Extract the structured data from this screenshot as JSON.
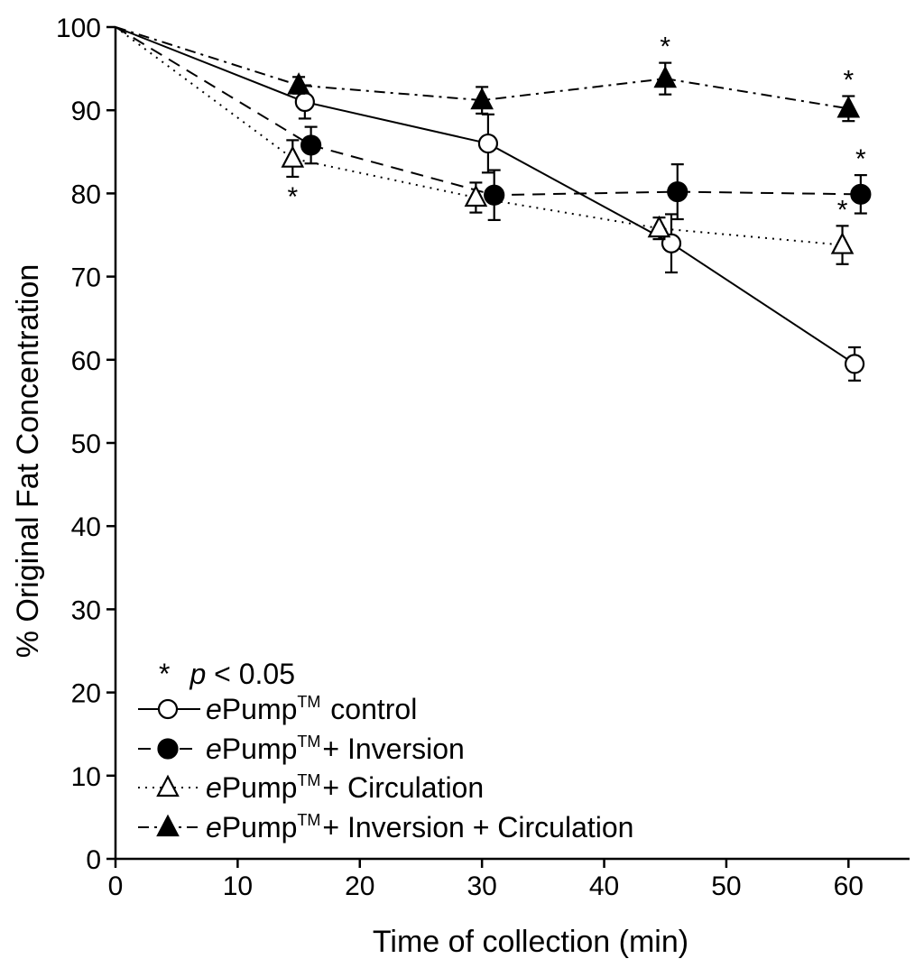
{
  "chart_data": {
    "type": "line",
    "title": "",
    "xlabel": "Time of collection (min)",
    "ylabel": "% Original Fat Concentration",
    "xlim": [
      0,
      65
    ],
    "ylim": [
      0,
      100
    ],
    "x_ticks": [
      "0",
      "10",
      "20",
      "30",
      "40",
      "50",
      "60"
    ],
    "y_ticks": [
      "0",
      "10",
      "20",
      "30",
      "40",
      "50",
      "60",
      "70",
      "80",
      "90",
      "100"
    ],
    "legend_position": "bottom-left",
    "significance": {
      "symbol": "*",
      "label_p": "p",
      "label_rest": " < 0.05"
    },
    "series": [
      {
        "name": "control",
        "legend_prefix": "e",
        "legend_brand": "Pump",
        "legend_tm": "TM",
        "legend_suffix": "  control",
        "marker": "circle-open",
        "line_style": "solid",
        "color": "#000000",
        "x": [
          0,
          15.5,
          30.5,
          45.5,
          60.5
        ],
        "y": [
          100,
          91,
          86,
          74,
          59.5
        ],
        "err": [
          0,
          2,
          3.5,
          3.5,
          2
        ],
        "significant": [
          false,
          false,
          false,
          false,
          false
        ]
      },
      {
        "name": "+ Inversion",
        "legend_prefix": "e",
        "legend_brand": "Pump",
        "legend_tm": "TM",
        "legend_suffix": "+ Inversion",
        "marker": "circle-filled",
        "line_style": "dashed",
        "color": "#000000",
        "x": [
          0,
          16,
          31,
          46,
          61
        ],
        "y": [
          100,
          85.8,
          79.8,
          80.2,
          79.9
        ],
        "err": [
          0,
          2.2,
          3,
          3.3,
          2.3
        ],
        "significant": [
          false,
          false,
          false,
          false,
          true
        ]
      },
      {
        "name": "+ Circulation",
        "legend_prefix": "e",
        "legend_brand": "Pump",
        "legend_tm": "TM",
        "legend_suffix": "+ Circulation",
        "marker": "triangle-open",
        "line_style": "dotted",
        "color": "#000000",
        "x": [
          0,
          14.5,
          29.5,
          44.5,
          59.5
        ],
        "y": [
          100,
          84.2,
          79.5,
          75.8,
          73.8
        ],
        "err": [
          0,
          2.2,
          1.8,
          1.3,
          2.3
        ],
        "significant": [
          false,
          true,
          false,
          false,
          true
        ]
      },
      {
        "name": "+ Inversion + Circulation",
        "legend_prefix": "e",
        "legend_brand": "Pump",
        "legend_tm": "TM",
        "legend_suffix": "+ Inversion + Circulation",
        "marker": "triangle-filled",
        "line_style": "dashdot",
        "color": "#000000",
        "x": [
          0,
          15,
          30,
          45,
          60
        ],
        "y": [
          100,
          93,
          91.2,
          93.8,
          90.2
        ],
        "err": [
          0,
          1,
          1.6,
          1.9,
          1.5
        ],
        "significant": [
          false,
          false,
          false,
          true,
          true
        ]
      }
    ]
  }
}
